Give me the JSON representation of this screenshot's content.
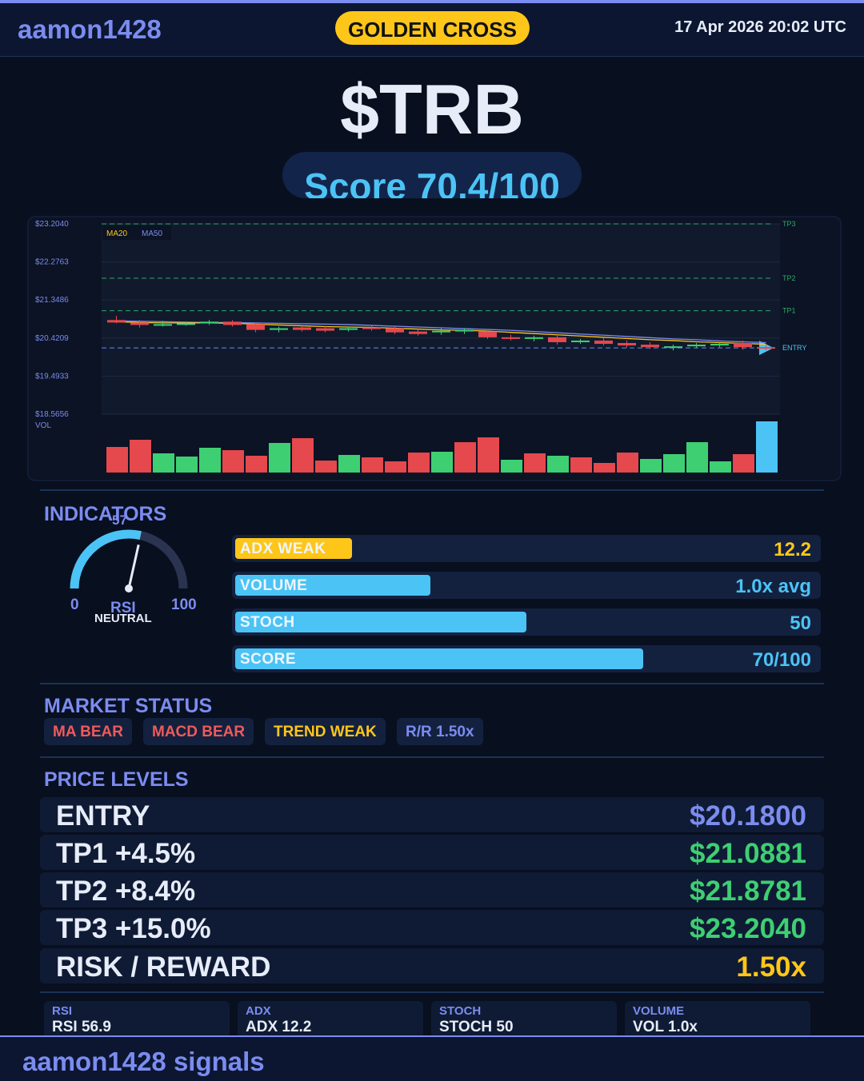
{
  "header": {
    "brand": "aamon1428",
    "signal_badge": "GOLDEN CROSS",
    "datetime": "17 Apr 2026  20:02 UTC"
  },
  "ticker": "$TRB",
  "score": {
    "label": "Score 70.4/100"
  },
  "chart_data": {
    "type": "candlestick",
    "y_ticks": [
      "$23.2040",
      "$22.2763",
      "$21.3486",
      "$20.4209",
      "$19.4933",
      "$18.5656"
    ],
    "ylim": [
      18.5656,
      23.204
    ],
    "legend": [
      "MA20",
      "MA50"
    ],
    "volume_label": "VOL",
    "levels": [
      {
        "name": "TP3",
        "value": 23.204
      },
      {
        "name": "TP2",
        "value": 21.8781
      },
      {
        "name": "TP1",
        "value": 21.0881
      },
      {
        "name": "ENTRY",
        "value": 20.18
      }
    ],
    "candles": [
      {
        "o": 20.86,
        "h": 20.96,
        "l": 20.78,
        "c": 20.8
      },
      {
        "o": 20.8,
        "h": 20.86,
        "l": 20.68,
        "c": 20.74
      },
      {
        "o": 20.75,
        "h": 20.84,
        "l": 20.7,
        "c": 20.76
      },
      {
        "o": 20.76,
        "h": 20.82,
        "l": 20.72,
        "c": 20.78
      },
      {
        "o": 20.78,
        "h": 20.86,
        "l": 20.74,
        "c": 20.82
      },
      {
        "o": 20.82,
        "h": 20.86,
        "l": 20.7,
        "c": 20.74
      },
      {
        "o": 20.76,
        "h": 20.8,
        "l": 20.56,
        "c": 20.62
      },
      {
        "o": 20.62,
        "h": 20.7,
        "l": 20.56,
        "c": 20.66
      },
      {
        "o": 20.68,
        "h": 20.72,
        "l": 20.58,
        "c": 20.62
      },
      {
        "o": 20.66,
        "h": 20.72,
        "l": 20.56,
        "c": 20.6
      },
      {
        "o": 20.62,
        "h": 20.7,
        "l": 20.58,
        "c": 20.66
      },
      {
        "o": 20.68,
        "h": 20.72,
        "l": 20.6,
        "c": 20.64
      },
      {
        "o": 20.66,
        "h": 20.7,
        "l": 20.52,
        "c": 20.56
      },
      {
        "o": 20.58,
        "h": 20.64,
        "l": 20.48,
        "c": 20.52
      },
      {
        "o": 20.56,
        "h": 20.66,
        "l": 20.5,
        "c": 20.6
      },
      {
        "o": 20.6,
        "h": 20.66,
        "l": 20.52,
        "c": 20.62
      },
      {
        "o": 20.58,
        "h": 20.64,
        "l": 20.4,
        "c": 20.44
      },
      {
        "o": 20.44,
        "h": 20.5,
        "l": 20.36,
        "c": 20.4
      },
      {
        "o": 20.4,
        "h": 20.48,
        "l": 20.34,
        "c": 20.44
      },
      {
        "o": 20.44,
        "h": 20.5,
        "l": 20.26,
        "c": 20.32
      },
      {
        "o": 20.32,
        "h": 20.4,
        "l": 20.28,
        "c": 20.36
      },
      {
        "o": 20.36,
        "h": 20.42,
        "l": 20.24,
        "c": 20.28
      },
      {
        "o": 20.3,
        "h": 20.36,
        "l": 20.18,
        "c": 20.24
      },
      {
        "o": 20.26,
        "h": 20.32,
        "l": 20.16,
        "c": 20.2
      },
      {
        "o": 20.2,
        "h": 20.26,
        "l": 20.12,
        "c": 20.22
      },
      {
        "o": 20.22,
        "h": 20.3,
        "l": 20.18,
        "c": 20.26
      },
      {
        "o": 20.24,
        "h": 20.32,
        "l": 20.2,
        "c": 20.28
      },
      {
        "o": 20.3,
        "h": 20.36,
        "l": 20.14,
        "c": 20.2
      },
      {
        "o": 20.2,
        "h": 20.26,
        "l": 20.12,
        "c": 20.18
      }
    ],
    "volume": [
      32,
      41,
      24,
      20,
      31,
      28,
      21,
      37,
      43,
      15,
      22,
      19,
      14,
      25,
      26,
      38,
      44,
      16,
      24,
      21,
      19,
      12,
      25,
      17,
      23,
      38,
      14,
      23,
      64
    ],
    "volume_colors": [
      "red",
      "red",
      "green",
      "green",
      "green",
      "red",
      "red",
      "green",
      "red",
      "red",
      "green",
      "red",
      "red",
      "red",
      "green",
      "red",
      "red",
      "green",
      "red",
      "green",
      "red",
      "red",
      "red",
      "green",
      "green",
      "green",
      "green",
      "red",
      "blue"
    ],
    "ma20": [
      20.82,
      20.8,
      20.79,
      20.79,
      20.79,
      20.78,
      20.76,
      20.74,
      20.72,
      20.7,
      20.69,
      20.68,
      20.66,
      20.64,
      20.62,
      20.61,
      20.59,
      20.56,
      20.53,
      20.5,
      20.47,
      20.44,
      20.41,
      20.38,
      20.36,
      20.33,
      20.31,
      20.29,
      20.27
    ],
    "ma50": [
      20.84,
      20.83,
      20.82,
      20.81,
      20.8,
      20.8,
      20.79,
      20.78,
      20.77,
      20.76,
      20.75,
      20.73,
      20.71,
      20.69,
      20.67,
      20.65,
      20.63,
      20.61,
      20.58,
      20.55,
      20.52,
      20.49,
      20.46,
      20.43,
      20.4,
      20.38,
      20.35,
      20.33,
      20.31
    ]
  },
  "indicators": {
    "title": "INDICATORS",
    "rsi": {
      "value": 57,
      "value_text": "57",
      "min_text": "0",
      "max_text": "100",
      "label": "RSI",
      "status": "NEUTRAL"
    },
    "bars": [
      {
        "label": "ADX  WEAK",
        "value_text": "12.2",
        "fill": 0.2,
        "color": "#ffc61a",
        "value_color": "#ffc61a"
      },
      {
        "label": "VOLUME",
        "value_text": "1.0x avg",
        "fill": 0.335,
        "color": "#4cc3f5",
        "value_color": "#4cc3f5"
      },
      {
        "label": "STOCH",
        "value_text": "50",
        "fill": 0.5,
        "color": "#4cc3f5",
        "value_color": "#4cc3f5"
      },
      {
        "label": "SCORE",
        "value_text": "70/100",
        "fill": 0.7,
        "color": "#4cc3f5",
        "value_color": "#4cc3f5"
      }
    ]
  },
  "market_status": {
    "title": "MARKET STATUS",
    "chips": [
      {
        "label": "MA BEAR",
        "color": "#f05a5a"
      },
      {
        "label": "MACD BEAR",
        "color": "#f05a5a"
      },
      {
        "label": "TREND WEAK",
        "color": "#ffc61a"
      },
      {
        "label": "R/R  1.50x",
        "color": "#7b8cf0"
      }
    ]
  },
  "price_levels": {
    "title": "PRICE LEVELS",
    "rows": [
      {
        "name": "ENTRY",
        "value": "$20.1800",
        "color": "#7b8cf0"
      },
      {
        "name": "TP1  +4.5%",
        "value": "$21.0881",
        "color": "#3ecf72"
      },
      {
        "name": "TP2  +8.4%",
        "value": "$21.8781",
        "color": "#3ecf72"
      },
      {
        "name": "TP3  +15.0%",
        "value": "$23.2040",
        "color": "#3ecf72"
      },
      {
        "name": "RISK / REWARD",
        "value": "1.50x",
        "color": "#ffc61a"
      }
    ]
  },
  "cards": [
    {
      "label": "RSI",
      "value": "RSI 56.9"
    },
    {
      "label": "ADX",
      "value": "ADX 12.2"
    },
    {
      "label": "STOCH",
      "value": "STOCH 50"
    },
    {
      "label": "VOLUME",
      "value": "VOL 1.0x"
    }
  ],
  "footer": {
    "text": "aamon1428 signals"
  }
}
